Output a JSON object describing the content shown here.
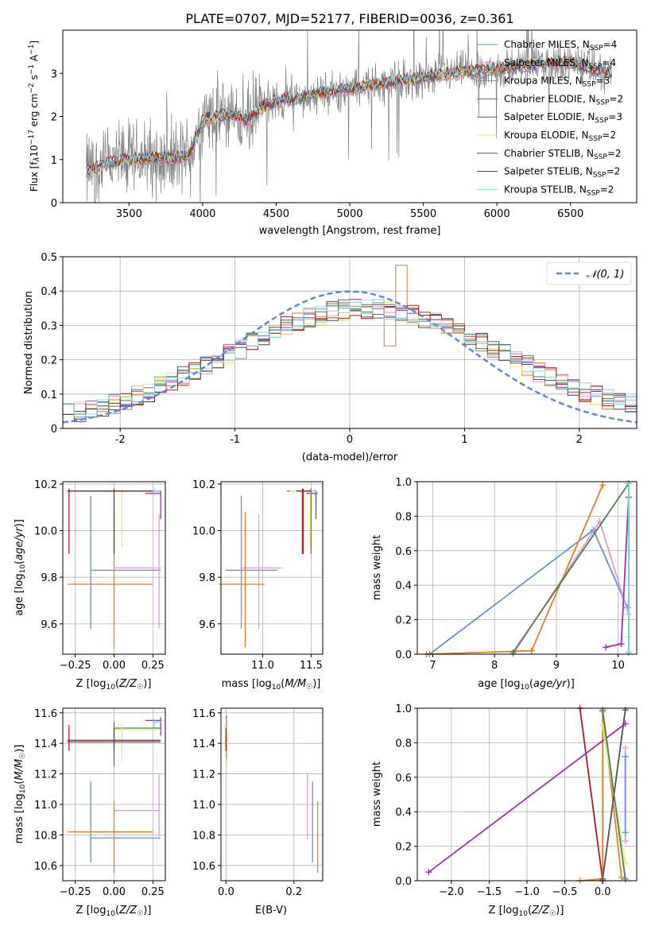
{
  "colors": {
    "chabrier_miles": "#6a8fd6",
    "salpeter_miles": "#e59bd0",
    "kroupa_miles": "#e67e22",
    "chabrier_elodie": "#4d7f53",
    "salpeter_elodie": "#9b30b0",
    "kroupa_elodie": "#d9f06c",
    "chabrier_stelib": "#555555",
    "salpeter_stelib": "#b01a1a",
    "kroupa_stelib": "#7ed9e6",
    "data": "#808080",
    "normal": "#5b8ad6"
  },
  "chart_data": [
    {
      "type": "line",
      "title": "PLATE=0707, MJD=52177, FIBERID=0036, z=0.361",
      "xlabel": "wavelength [Angstrom, rest frame]",
      "ylabel": "Flux [f_λ 10^-17 erg cm^-2 s^-1 A^-1]",
      "xlim": [
        3050,
        6950
      ],
      "ylim": [
        0,
        4.0
      ],
      "xticks": [
        3500,
        4000,
        4500,
        5000,
        5500,
        6000,
        6500
      ],
      "yticks": [
        0,
        1,
        2,
        3
      ],
      "legend": [
        "Chabrier MILES, N_SSP=4",
        "Salpeter MILES, N_SSP=4",
        "Kroupa MILES, N_SSP=3",
        "Chabrier ELODIE, N_SSP=2",
        "Salpeter ELODIE, N_SSP=3",
        "Kroupa ELODIE, N_SSP=2",
        "Chabrier STELIB, N_SSP=2",
        "Salpeter STELIB, N_SSP=2",
        "Kroupa STELIB, N_SSP=2"
      ],
      "legend_placement": "top-right",
      "continuum_x": [
        3210,
        3300,
        3400,
        3500,
        3600,
        3700,
        3800,
        3900,
        3950,
        4000,
        4100,
        4200,
        4300,
        4400,
        4500,
        4600,
        4700,
        4800,
        4900,
        5000,
        5100,
        5200,
        5300,
        5400,
        5500,
        5600,
        5700,
        5800,
        5900,
        6000,
        6100,
        6200,
        6300,
        6400,
        6500,
        6600,
        6700,
        6780
      ],
      "continuum_y": [
        0.72,
        0.85,
        0.95,
        1.0,
        1.02,
        1.05,
        1.0,
        1.1,
        1.45,
        1.9,
        2.0,
        2.05,
        1.9,
        2.2,
        2.35,
        2.4,
        2.45,
        2.55,
        2.6,
        2.65,
        2.7,
        2.75,
        2.8,
        2.85,
        2.9,
        2.95,
        3.0,
        3.05,
        3.05,
        3.1,
        3.15,
        3.2,
        3.2,
        3.25,
        3.25,
        3.15,
        3.05,
        3.0
      ]
    },
    {
      "type": "area",
      "xlabel": "(data-model)/error",
      "ylabel": "Normed distribution",
      "xlim": [
        -2.5,
        2.5
      ],
      "ylim": [
        0,
        0.5
      ],
      "xticks": [
        -2,
        -1,
        0,
        1,
        2
      ],
      "yticks": [
        0.0,
        0.1,
        0.2,
        0.3,
        0.4,
        0.5
      ],
      "legend": [
        "𝒩(0, 1)"
      ],
      "legend_placement": "top-right",
      "grid": true
    },
    {
      "type": "scatter",
      "xlabel": "Z [log10(Z/Z☉)]",
      "ylabel": "age  [log10(age/yr)]",
      "xlim": [
        -0.33,
        0.33
      ],
      "ylim": [
        9.47,
        10.21
      ],
      "xticks": [
        -0.25,
        0.0,
        0.25
      ],
      "xtick_labels": [
        "−0.25",
        "0.00",
        "0.25"
      ],
      "yticks": [
        9.6,
        9.8,
        10.0,
        10.2
      ],
      "ytick_labels": [
        "9.6",
        "9.8",
        "10.0",
        "10.2"
      ],
      "grid": true
    },
    {
      "type": "scatter",
      "xlabel": "mass [log10(M/M☉)]",
      "xlim": [
        10.57,
        11.62
      ],
      "ylim": [
        9.47,
        10.21
      ],
      "xticks": [
        11.0,
        11.5
      ],
      "xtick_labels": [
        "11.0",
        "11.5"
      ],
      "yticks": [
        9.6,
        9.8,
        10.0,
        10.2
      ],
      "ytick_labels": [
        "9.6",
        "9.8",
        "10.0",
        "10.2"
      ],
      "grid": true
    },
    {
      "type": "line",
      "xlabel": "age  [log10(age/yr)]",
      "ylabel": "mass weight",
      "xlim": [
        6.75,
        10.3
      ],
      "ylim": [
        0,
        1.0
      ],
      "xticks": [
        7,
        8,
        9,
        10
      ],
      "xtick_labels": [
        "7",
        "8",
        "9",
        "10"
      ],
      "yticks": [
        0.0,
        0.2,
        0.4,
        0.6,
        0.8,
        1.0
      ],
      "ytick_labels": [
        "0.0",
        "0.2",
        "0.4",
        "0.6",
        "0.8",
        "1.0"
      ],
      "grid": true
    },
    {
      "type": "scatter",
      "xlabel": "Z [log10(Z/Z☉)]",
      "ylabel": "mass [log10(M/M☉)]",
      "xlim": [
        -0.33,
        0.33
      ],
      "ylim": [
        10.5,
        11.63
      ],
      "xticks": [
        -0.25,
        0.0,
        0.25
      ],
      "xtick_labels": [
        "−0.25",
        "0.00",
        "0.25"
      ],
      "yticks": [
        10.6,
        10.8,
        11.0,
        11.2,
        11.4,
        11.6
      ],
      "ytick_labels": [
        "10.6",
        "10.8",
        "11.0",
        "11.2",
        "11.4",
        "11.6"
      ],
      "grid": true
    },
    {
      "type": "scatter",
      "xlabel": "E(B-V)",
      "xlim": [
        -0.015,
        0.285
      ],
      "ylim": [
        10.5,
        11.63
      ],
      "xticks": [
        0.0,
        0.2
      ],
      "xtick_labels": [
        "0.0",
        "0.2"
      ],
      "yticks": [
        10.6,
        10.8,
        11.0,
        11.2,
        11.4,
        11.6
      ],
      "ytick_labels": [
        "10.6",
        "10.8",
        "11.0",
        "11.2",
        "11.4",
        "11.6"
      ],
      "grid": true
    },
    {
      "type": "line",
      "xlabel": "Z [log10(Z/Z☉)]",
      "ylabel": "mass weight",
      "xlim": [
        -2.45,
        0.45
      ],
      "ylim": [
        0,
        1.0
      ],
      "xticks": [
        -2.0,
        -1.5,
        -1.0,
        -0.5,
        0.0
      ],
      "xtick_labels": [
        "−2.0",
        "−1.5",
        "−1.0",
        "−0.5",
        "0.0"
      ],
      "yticks": [
        0.0,
        0.2,
        0.4,
        0.6,
        0.8,
        1.0
      ],
      "ytick_labels": [
        "0.0",
        "0.2",
        "0.4",
        "0.6",
        "0.8",
        "1.0"
      ],
      "grid": true
    }
  ],
  "models": [
    {
      "key": "chabrier_miles",
      "Z": -0.15,
      "Zlo": -0.15,
      "Zhi": 0.3,
      "age": 9.83,
      "agelo": 9.58,
      "agehi": 10.15,
      "mass": 10.78,
      "masslo": 10.62,
      "masshi": 11.15,
      "ebv": 0.255,
      "ebvlo": 10.62,
      "ebvhi": 11.15
    },
    {
      "key": "salpeter_miles",
      "Z": 0.29,
      "Zlo": 0.0,
      "Zhi": 0.3,
      "age": 9.84,
      "agelo": 9.58,
      "agehi": 10.07,
      "mass": 10.96,
      "masslo": 10.77,
      "masshi": 11.2,
      "ebv": 0.24,
      "ebvlo": 10.77,
      "ebvhi": 11.2
    },
    {
      "key": "kroupa_miles",
      "Z": 0.0,
      "Zlo": -0.3,
      "Zhi": 0.25,
      "age": 9.77,
      "agelo": 9.5,
      "agehi": 10.08,
      "mass": 10.82,
      "masslo": 10.55,
      "masshi": 11.02,
      "ebv": 0.27,
      "ebvlo": 10.55,
      "ebvhi": 11.02
    },
    {
      "key": "chabrier_elodie",
      "Z": 0.0,
      "Zlo": 0.0,
      "Zhi": 0.3,
      "age": 10.17,
      "agelo": 9.9,
      "agehi": 10.18,
      "mass": 11.5,
      "masslo": 11.25,
      "masshi": 11.54,
      "ebv": 0.002,
      "ebvlo": 11.3,
      "ebvhi": 11.55
    },
    {
      "key": "salpeter_elodie",
      "Z": 0.3,
      "Zlo": 0.2,
      "Zhi": 0.3,
      "age": 10.16,
      "agelo": 10.05,
      "agehi": 10.17,
      "mass": 11.55,
      "masslo": 11.45,
      "masshi": 11.57,
      "ebv": 0.001,
      "ebvlo": 11.45,
      "ebvhi": 11.58
    },
    {
      "key": "kroupa_elodie",
      "Z": 0.05,
      "Zlo": 0.0,
      "Zhi": 0.3,
      "age": 10.17,
      "agelo": 9.93,
      "agehi": 10.18,
      "mass": 11.49,
      "masslo": 11.28,
      "masshi": 11.53,
      "ebv": 0.003,
      "ebvlo": 11.28,
      "ebvhi": 11.53
    },
    {
      "key": "chabrier_stelib",
      "Z": 0.0,
      "Zlo": -0.3,
      "Zhi": 0.3,
      "age": 10.17,
      "agelo": 9.9,
      "agehi": 10.18,
      "mass": 11.42,
      "masslo": 11.35,
      "masshi": 11.5,
      "ebv": 0.0,
      "ebvlo": 11.35,
      "ebvhi": 11.5
    },
    {
      "key": "salpeter_stelib",
      "Z": -0.29,
      "Zlo": -0.3,
      "Zhi": 0.3,
      "age": 10.17,
      "agelo": 9.9,
      "agehi": 10.18,
      "mass": 11.41,
      "masslo": 11.35,
      "masshi": 11.52,
      "ebv": 0.0,
      "ebvlo": 11.35,
      "ebvhi": 11.52
    },
    {
      "key": "kroupa_stelib",
      "Z": 0.26,
      "Zlo": 0.25,
      "Zhi": 0.3,
      "age": 10.17,
      "agelo": 10.15,
      "agehi": 10.18,
      "mass": 11.54,
      "masslo": 11.5,
      "masshi": 11.56,
      "ebv": 0.001,
      "ebvlo": 11.5,
      "ebvhi": 11.56
    }
  ],
  "age_weight": [
    {
      "key": "chabrier_miles",
      "pts": [
        [
          6.95,
          0.0
        ],
        [
          9.6,
          0.72
        ],
        [
          10.15,
          0.27
        ]
      ]
    },
    {
      "key": "salpeter_miles",
      "pts": [
        [
          8.3,
          0.0
        ],
        [
          9.7,
          0.77
        ],
        [
          10.17,
          0.23
        ]
      ]
    },
    {
      "key": "kroupa_miles",
      "pts": [
        [
          6.9,
          0.0
        ],
        [
          8.6,
          0.02
        ],
        [
          9.75,
          0.98
        ]
      ]
    },
    {
      "key": "chabrier_elodie",
      "pts": [
        [
          8.3,
          0.01
        ],
        [
          10.17,
          0.99
        ]
      ]
    },
    {
      "key": "salpeter_elodie",
      "pts": [
        [
          9.8,
          0.04
        ],
        [
          10.05,
          0.06
        ],
        [
          10.17,
          0.91
        ]
      ]
    },
    {
      "key": "kroupa_elodie",
      "pts": [
        [
          10.17,
          0.1
        ],
        [
          10.17,
          0.9
        ]
      ]
    },
    {
      "key": "chabrier_stelib",
      "pts": [
        [
          10.17,
          0.01
        ],
        [
          10.17,
          0.99
        ]
      ]
    },
    {
      "key": "salpeter_stelib",
      "pts": [
        [
          10.17,
          0.01
        ],
        [
          10.17,
          0.99
        ]
      ]
    },
    {
      "key": "kroupa_stelib",
      "pts": [
        [
          10.17,
          0.01
        ],
        [
          10.17,
          0.99
        ]
      ]
    }
  ],
  "Z_weight": [
    {
      "key": "salpeter_stelib",
      "pts": [
        [
          -0.3,
          1.0
        ],
        [
          0.0,
          0.0
        ]
      ]
    },
    {
      "key": "kroupa_miles",
      "pts": [
        [
          -0.3,
          0.0
        ],
        [
          0.0,
          0.01
        ],
        [
          0.0,
          0.98
        ],
        [
          0.25,
          0.02
        ]
      ]
    },
    {
      "key": "salpeter_elodie",
      "pts": [
        [
          -2.3,
          0.05
        ],
        [
          0.3,
          0.91
        ]
      ]
    },
    {
      "key": "salpeter_miles",
      "pts": [
        [
          0.3,
          0.23
        ],
        [
          0.3,
          0.77
        ]
      ]
    },
    {
      "key": "chabrier_miles",
      "pts": [
        [
          0.3,
          0.28
        ],
        [
          0.3,
          0.72
        ]
      ]
    },
    {
      "key": "kroupa_elodie",
      "pts": [
        [
          0.0,
          0.9
        ],
        [
          0.3,
          0.1
        ]
      ]
    },
    {
      "key": "chabrier_elodie",
      "pts": [
        [
          0.0,
          0.99
        ],
        [
          0.3,
          0.01
        ]
      ]
    },
    {
      "key": "kroupa_stelib",
      "pts": [
        [
          0.0,
          0.01
        ],
        [
          0.3,
          0.99
        ]
      ]
    },
    {
      "key": "chabrier_stelib",
      "pts": [
        [
          0.0,
          0.01
        ],
        [
          0.3,
          0.99
        ]
      ]
    }
  ]
}
